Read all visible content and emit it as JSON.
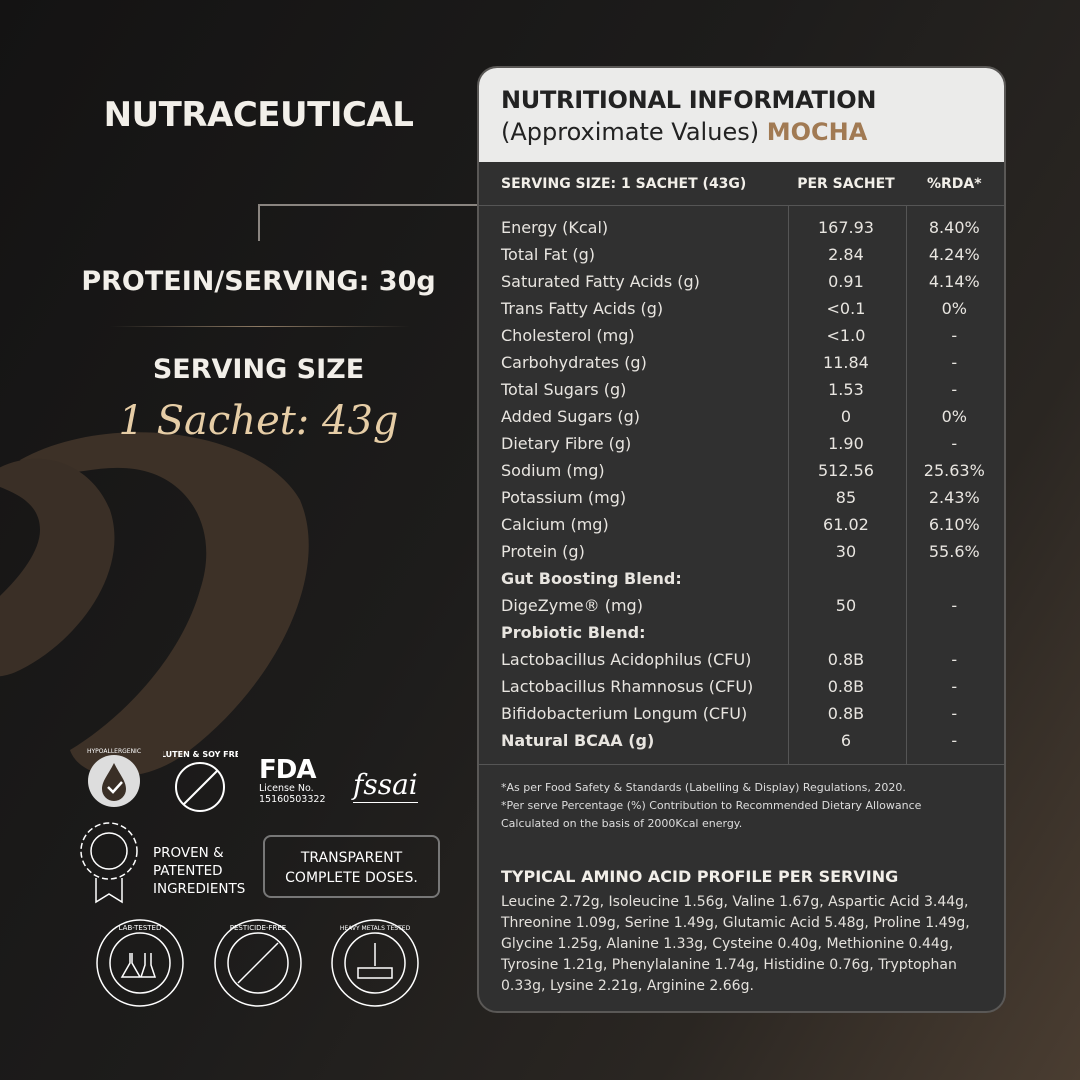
{
  "left": {
    "brand": "NUTRACEUTICAL",
    "protein": "PROTEIN/SERVING: 30g",
    "serving_label": "SERVING SIZE",
    "serving_value": "1 Sachet: 43g"
  },
  "panel": {
    "title": "NUTRITIONAL INFORMATION",
    "subtitle": "(Approximate Values)",
    "flavor": "MOCHA",
    "columns": [
      "SERVING SIZE: 1 SACHET (43G)",
      "PER SACHET",
      "%RDA*"
    ],
    "rows": [
      {
        "name": "Energy (Kcal)",
        "per": "167.93",
        "rda": "8.40%"
      },
      {
        "name": "Total Fat (g)",
        "per": "2.84",
        "rda": "4.24%"
      },
      {
        "name": "Saturated Fatty Acids (g)",
        "per": "0.91",
        "rda": "4.14%"
      },
      {
        "name": "Trans Fatty Acids (g)",
        "per": "<0.1",
        "rda": "0%"
      },
      {
        "name": "Cholesterol (mg)",
        "per": "<1.0",
        "rda": "-"
      },
      {
        "name": "Carbohydrates (g)",
        "per": "11.84",
        "rda": "-"
      },
      {
        "name": "Total Sugars (g)",
        "per": "1.53",
        "rda": "-"
      },
      {
        "name": "Added Sugars (g)",
        "per": "0",
        "rda": "0%"
      },
      {
        "name": "Dietary Fibre (g)",
        "per": "1.90",
        "rda": "-"
      },
      {
        "name": "Sodium (mg)",
        "per": "512.56",
        "rda": "25.63%"
      },
      {
        "name": "Potassium (mg)",
        "per": "85",
        "rda": "2.43%"
      },
      {
        "name": "Calcium (mg)",
        "per": "61.02",
        "rda": "6.10%"
      },
      {
        "name": "Protein (g)",
        "per": "30",
        "rda": "55.6%"
      },
      {
        "name": "Gut Boosting Blend:",
        "per": "",
        "rda": "",
        "bold": true
      },
      {
        "name": "DigeZyme® (mg)",
        "per": "50",
        "rda": "-"
      },
      {
        "name": "Probiotic Blend:",
        "per": "",
        "rda": "",
        "bold": true
      },
      {
        "name": "Lactobacillus Acidophilus (CFU)",
        "per": "0.8B",
        "rda": "-"
      },
      {
        "name": "Lactobacillus Rhamnosus (CFU)",
        "per": "0.8B",
        "rda": "-"
      },
      {
        "name": "Bifidobacterium Longum (CFU)",
        "per": "0.8B",
        "rda": "-"
      },
      {
        "name": "Natural BCAA (g)",
        "per": "6",
        "rda": "-",
        "bold": true
      }
    ],
    "notes": [
      "*As per Food Safety & Standards (Labelling & Display) Regulations, 2020.",
      "*Per serve Percentage (%) Contribution to Recommended Dietary Allowance",
      "Calculated on the basis of 2000Kcal energy."
    ],
    "amino_title": "TYPICAL AMINO ACID PROFILE PER SERVING",
    "amino_text": "Leucine 2.72g, Isoleucine 1.56g, Valine 1.67g, Aspartic Acid 3.44g, Threonine 1.09g, Serine 1.49g, Glutamic Acid 5.48g, Proline 1.49g, Glycine 1.25g, Alanine 1.33g, Cysteine 0.40g, Methionine 0.44g, Tyrosine 1.21g, Phenylalanine 1.74g, Histidine 0.76g, Tryptophan 0.33g, Lysine 2.21g, Arginine 2.66g."
  },
  "badges": {
    "hypo": "HYPOALLERGENIC",
    "gluten": "GLUTEN & SOY FREE",
    "fda_logo": "FDA",
    "fda_license": "License No.",
    "fda_number": "15160503322",
    "fssai": "fssai",
    "proven": "PROVEN & PATENTED INGREDIENTS",
    "transparent": "TRANSPARENT COMPLETE DOSES.",
    "lab": "LAB-TESTED",
    "pesticide": "PESTICIDE-FREE",
    "heavy": "HEAVY METALS TESTED"
  },
  "colors": {
    "accent": "#a17a53",
    "serving_gold": "#e6cda6",
    "panel": "#303030",
    "panel_header": "#ebebea"
  }
}
